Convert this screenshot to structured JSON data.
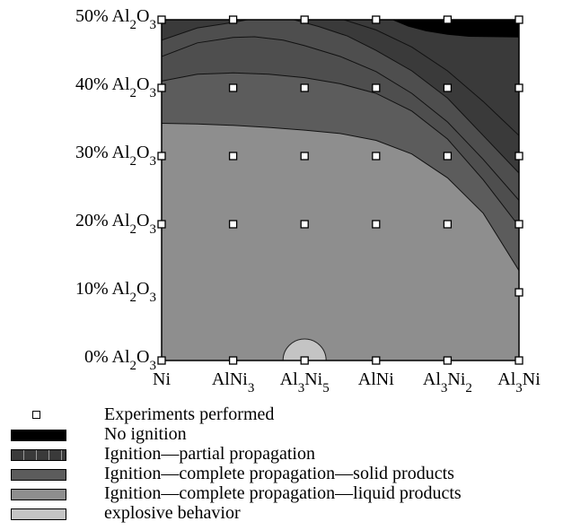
{
  "chart_data": {
    "type": "heatmap",
    "title": "",
    "xlabel": "",
    "ylabel": "",
    "x_categories": [
      "Ni",
      "AlNi3",
      "Al3Ni5",
      "AlNi",
      "Al3Ni2",
      "Al3Ni"
    ],
    "x_tick_parts": [
      [
        [
          "Ni",
          ""
        ]
      ],
      [
        [
          "AlNi",
          ""
        ],
        [
          "3",
          "sub"
        ]
      ],
      [
        [
          "Al",
          ""
        ],
        [
          "3",
          "sub"
        ],
        [
          "Ni",
          ""
        ],
        [
          "5",
          "sub"
        ]
      ],
      [
        [
          "AlNi",
          ""
        ]
      ],
      [
        [
          "Al",
          ""
        ],
        [
          "3",
          "sub"
        ],
        [
          "Ni",
          ""
        ],
        [
          "2",
          "sub"
        ]
      ],
      [
        [
          "Al",
          ""
        ],
        [
          "3",
          "sub"
        ],
        [
          "Ni",
          ""
        ]
      ]
    ],
    "y_values": [
      0,
      10,
      20,
      30,
      40,
      50
    ],
    "y_unit": "% Al2O3",
    "y_tick_labels": [
      "0% Al2O3",
      "10% Al2O3",
      "20% Al2O3",
      "30% Al2O3",
      "40% Al2O3",
      "50% Al2O3"
    ],
    "y_tick_parts": [
      [
        [
          "0% Al",
          ""
        ],
        [
          "2",
          "sub"
        ],
        [
          "O",
          ""
        ],
        [
          "3",
          "sub"
        ]
      ],
      [
        [
          "10% Al",
          ""
        ],
        [
          "2",
          "sub"
        ],
        [
          "O",
          ""
        ],
        [
          "3",
          "sub"
        ]
      ],
      [
        [
          "20% Al",
          ""
        ],
        [
          "2",
          "sub"
        ],
        [
          "O",
          ""
        ],
        [
          "3",
          "sub"
        ]
      ],
      [
        [
          "30% Al",
          ""
        ],
        [
          "2",
          "sub"
        ],
        [
          "O",
          ""
        ],
        [
          "3",
          "sub"
        ]
      ],
      [
        [
          "40% Al",
          ""
        ],
        [
          "2",
          "sub"
        ],
        [
          "O",
          ""
        ],
        [
          "3",
          "sub"
        ]
      ],
      [
        [
          "50% Al",
          ""
        ],
        [
          "2",
          "sub"
        ],
        [
          "O",
          ""
        ],
        [
          "3",
          "sub"
        ]
      ]
    ],
    "ylim": [
      0,
      50
    ],
    "grid": false,
    "legend_position": "bottom",
    "regions": [
      {
        "name": "No ignition",
        "color": "#000000"
      },
      {
        "name": "Ignition—partial propagation",
        "color": "#3a3a3a"
      },
      {
        "name": "Ignition—complete propagation—solid products",
        "color": "#5c5c5c"
      },
      {
        "name": "Ignition—complete propagation—liquid products",
        "color": "#8e8e8e"
      },
      {
        "name": "explosive behavior",
        "color": "#c4c4c4"
      }
    ],
    "experiments": [
      {
        "x": 0,
        "y": 0
      },
      {
        "x": 1,
        "y": 0
      },
      {
        "x": 2,
        "y": 0
      },
      {
        "x": 3,
        "y": 0
      },
      {
        "x": 4,
        "y": 0
      },
      {
        "x": 5,
        "y": 0
      },
      {
        "x": 5,
        "y": 10
      },
      {
        "x": 0,
        "y": 20
      },
      {
        "x": 1,
        "y": 20
      },
      {
        "x": 2,
        "y": 20
      },
      {
        "x": 3,
        "y": 20
      },
      {
        "x": 4,
        "y": 20
      },
      {
        "x": 5,
        "y": 20
      },
      {
        "x": 0,
        "y": 30
      },
      {
        "x": 1,
        "y": 30
      },
      {
        "x": 2,
        "y": 30
      },
      {
        "x": 3,
        "y": 30
      },
      {
        "x": 4,
        "y": 30
      },
      {
        "x": 5,
        "y": 30
      },
      {
        "x": 0,
        "y": 40
      },
      {
        "x": 1,
        "y": 40
      },
      {
        "x": 2,
        "y": 40
      },
      {
        "x": 3,
        "y": 40
      },
      {
        "x": 4,
        "y": 40
      },
      {
        "x": 5,
        "y": 40
      },
      {
        "x": 0,
        "y": 50
      },
      {
        "x": 1,
        "y": 50
      },
      {
        "x": 2,
        "y": 50
      },
      {
        "x": 3,
        "y": 50
      },
      {
        "x": 4,
        "y": 50
      },
      {
        "x": 5,
        "y": 50
      }
    ]
  },
  "legend": {
    "experiments_label": "Experiments performed",
    "items": [
      "No ignition",
      "Ignition—partial propagation",
      "Ignition—complete propagation—solid products",
      "Ignition—complete propagation—liquid products",
      "explosive behavior"
    ]
  }
}
